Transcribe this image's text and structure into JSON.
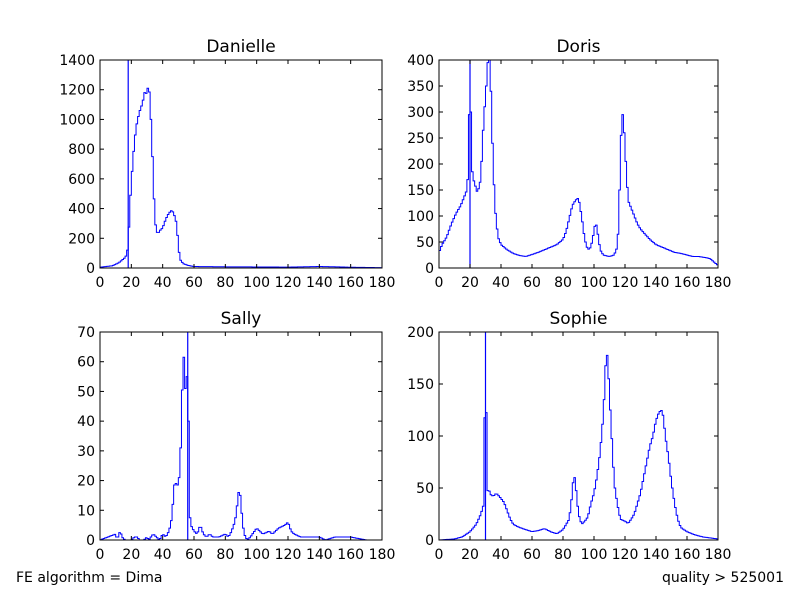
{
  "footer": {
    "left": "FE algorithm = Dima",
    "right": "quality > 525001"
  },
  "chart_data": [
    {
      "type": "histogram",
      "title": "Danielle",
      "xlim": [
        0,
        180
      ],
      "ylim": [
        0,
        1400
      ],
      "xticks": [
        0,
        20,
        40,
        60,
        80,
        100,
        120,
        140,
        160,
        180
      ],
      "yticks": [
        0,
        200,
        400,
        600,
        800,
        1000,
        1200,
        1400
      ],
      "color": "#0000ff",
      "bin_width": 1,
      "vline": 18,
      "profile": [
        [
          0,
          5
        ],
        [
          8,
          15
        ],
        [
          12,
          35
        ],
        [
          16,
          70
        ],
        [
          17,
          90
        ],
        [
          18,
          150
        ],
        [
          19,
          400
        ],
        [
          20,
          580
        ],
        [
          21,
          720
        ],
        [
          22,
          850
        ],
        [
          23,
          940
        ],
        [
          24,
          1000
        ],
        [
          25,
          1040
        ],
        [
          26,
          1080
        ],
        [
          27,
          1100
        ],
        [
          28,
          1160
        ],
        [
          29,
          1200
        ],
        [
          30,
          1150
        ],
        [
          31,
          1270
        ],
        [
          32,
          1100
        ],
        [
          33,
          900
        ],
        [
          34,
          600
        ],
        [
          35,
          330
        ],
        [
          36,
          250
        ],
        [
          37,
          230
        ],
        [
          38,
          250
        ],
        [
          40,
          270
        ],
        [
          42,
          330
        ],
        [
          44,
          370
        ],
        [
          46,
          390
        ],
        [
          48,
          340
        ],
        [
          49,
          290
        ],
        [
          50,
          150
        ],
        [
          51,
          60
        ],
        [
          53,
          30
        ],
        [
          56,
          18
        ],
        [
          60,
          10
        ],
        [
          80,
          8
        ],
        [
          120,
          6
        ],
        [
          140,
          10
        ],
        [
          150,
          8
        ],
        [
          160,
          5
        ],
        [
          175,
          3
        ],
        [
          180,
          2
        ]
      ]
    },
    {
      "type": "histogram",
      "title": "Doris",
      "xlim": [
        0,
        180
      ],
      "ylim": [
        0,
        400
      ],
      "xticks": [
        0,
        20,
        40,
        60,
        80,
        100,
        120,
        140,
        160,
        180
      ],
      "yticks": [
        0,
        50,
        100,
        150,
        200,
        250,
        300,
        350,
        400
      ],
      "color": "#0000ff",
      "bin_width": 1,
      "vline": 20,
      "profile": [
        [
          0,
          30
        ],
        [
          2,
          45
        ],
        [
          5,
          60
        ],
        [
          8,
          85
        ],
        [
          11,
          105
        ],
        [
          14,
          120
        ],
        [
          16,
          135
        ],
        [
          18,
          150
        ],
        [
          19,
          190
        ],
        [
          20,
          400
        ],
        [
          21,
          200
        ],
        [
          22,
          170
        ],
        [
          23,
          165
        ],
        [
          24,
          150
        ],
        [
          25,
          145
        ],
        [
          26,
          160
        ],
        [
          27,
          170
        ],
        [
          28,
          240
        ],
        [
          29,
          290
        ],
        [
          30,
          330
        ],
        [
          31,
          370
        ],
        [
          32,
          420
        ],
        [
          33,
          400
        ],
        [
          34,
          280
        ],
        [
          35,
          200
        ],
        [
          36,
          120
        ],
        [
          38,
          60
        ],
        [
          40,
          45
        ],
        [
          44,
          35
        ],
        [
          48,
          28
        ],
        [
          52,
          24
        ],
        [
          56,
          22
        ],
        [
          60,
          26
        ],
        [
          64,
          30
        ],
        [
          68,
          35
        ],
        [
          72,
          40
        ],
        [
          76,
          45
        ],
        [
          80,
          55
        ],
        [
          82,
          70
        ],
        [
          84,
          95
        ],
        [
          86,
          120
        ],
        [
          88,
          130
        ],
        [
          90,
          135
        ],
        [
          92,
          100
        ],
        [
          94,
          55
        ],
        [
          96,
          35
        ],
        [
          98,
          40
        ],
        [
          100,
          70
        ],
        [
          101,
          90
        ],
        [
          102,
          75
        ],
        [
          104,
          35
        ],
        [
          106,
          25
        ],
        [
          110,
          22
        ],
        [
          113,
          25
        ],
        [
          115,
          40
        ],
        [
          116,
          90
        ],
        [
          117,
          210
        ],
        [
          118,
          300
        ],
        [
          119,
          290
        ],
        [
          120,
          230
        ],
        [
          121,
          180
        ],
        [
          122,
          130
        ],
        [
          124,
          115
        ],
        [
          126,
          100
        ],
        [
          128,
          85
        ],
        [
          130,
          75
        ],
        [
          133,
          65
        ],
        [
          136,
          55
        ],
        [
          140,
          45
        ],
        [
          144,
          40
        ],
        [
          148,
          35
        ],
        [
          152,
          30
        ],
        [
          156,
          28
        ],
        [
          160,
          25
        ],
        [
          164,
          22
        ],
        [
          168,
          22
        ],
        [
          172,
          20
        ],
        [
          175,
          18
        ],
        [
          178,
          10
        ],
        [
          180,
          5
        ]
      ]
    },
    {
      "type": "histogram",
      "title": "Sally",
      "xlim": [
        0,
        180
      ],
      "ylim": [
        0,
        70
      ],
      "xticks": [
        0,
        20,
        40,
        60,
        80,
        100,
        120,
        140,
        160,
        180
      ],
      "yticks": [
        0,
        10,
        20,
        30,
        40,
        50,
        60,
        70
      ],
      "color": "#0000ff",
      "bin_width": 1,
      "vline": 56,
      "profile": [
        [
          0,
          0
        ],
        [
          10,
          2
        ],
        [
          11,
          0
        ],
        [
          12,
          2
        ],
        [
          13,
          3
        ],
        [
          14,
          1
        ],
        [
          16,
          0
        ],
        [
          20,
          0
        ],
        [
          22,
          1
        ],
        [
          24,
          1
        ],
        [
          25,
          0
        ],
        [
          28,
          0
        ],
        [
          30,
          1
        ],
        [
          31,
          0
        ],
        [
          34,
          2
        ],
        [
          36,
          1
        ],
        [
          38,
          0
        ],
        [
          40,
          2
        ],
        [
          42,
          1
        ],
        [
          44,
          3
        ],
        [
          45,
          5
        ],
        [
          46,
          8
        ],
        [
          47,
          16
        ],
        [
          48,
          21
        ],
        [
          49,
          17
        ],
        [
          50,
          20
        ],
        [
          51,
          22
        ],
        [
          52,
          40
        ],
        [
          53,
          61
        ],
        [
          54,
          62
        ],
        [
          55,
          40
        ],
        [
          56,
          70
        ],
        [
          57,
          10
        ],
        [
          58,
          5
        ],
        [
          60,
          3
        ],
        [
          62,
          2
        ],
        [
          64,
          5
        ],
        [
          66,
          2
        ],
        [
          68,
          1
        ],
        [
          70,
          2
        ],
        [
          72,
          1
        ],
        [
          74,
          1
        ],
        [
          76,
          1
        ],
        [
          80,
          2
        ],
        [
          82,
          1
        ],
        [
          84,
          3
        ],
        [
          86,
          6
        ],
        [
          87,
          9
        ],
        [
          88,
          14
        ],
        [
          89,
          18
        ],
        [
          90,
          12
        ],
        [
          91,
          6
        ],
        [
          92,
          2
        ],
        [
          94,
          0
        ],
        [
          96,
          1
        ],
        [
          100,
          4
        ],
        [
          104,
          2
        ],
        [
          108,
          3
        ],
        [
          110,
          2
        ],
        [
          114,
          4
        ],
        [
          118,
          5
        ],
        [
          120,
          6
        ],
        [
          122,
          3
        ],
        [
          124,
          2
        ],
        [
          128,
          1
        ],
        [
          132,
          1
        ],
        [
          140,
          1
        ],
        [
          144,
          0
        ],
        [
          150,
          1
        ],
        [
          160,
          1
        ],
        [
          170,
          0
        ]
      ]
    },
    {
      "type": "histogram",
      "title": "Sophie",
      "xlim": [
        0,
        180
      ],
      "ylim": [
        0,
        200
      ],
      "xticks": [
        0,
        20,
        40,
        60,
        80,
        100,
        120,
        140,
        160,
        180
      ],
      "yticks": [
        0,
        50,
        100,
        150,
        200
      ],
      "color": "#0000ff",
      "bin_width": 1,
      "vline": 30,
      "profile": [
        [
          0,
          0
        ],
        [
          10,
          1
        ],
        [
          15,
          3
        ],
        [
          20,
          8
        ],
        [
          24,
          15
        ],
        [
          27,
          25
        ],
        [
          29,
          35
        ],
        [
          30,
          200
        ],
        [
          31,
          45
        ],
        [
          32,
          50
        ],
        [
          33,
          44
        ],
        [
          35,
          42
        ],
        [
          37,
          45
        ],
        [
          40,
          40
        ],
        [
          42,
          36
        ],
        [
          44,
          28
        ],
        [
          46,
          20
        ],
        [
          48,
          15
        ],
        [
          52,
          12
        ],
        [
          56,
          10
        ],
        [
          60,
          8
        ],
        [
          64,
          9
        ],
        [
          68,
          11
        ],
        [
          72,
          8
        ],
        [
          76,
          6
        ],
        [
          80,
          10
        ],
        [
          84,
          20
        ],
        [
          86,
          45
        ],
        [
          87,
          65
        ],
        [
          88,
          55
        ],
        [
          89,
          40
        ],
        [
          90,
          25
        ],
        [
          92,
          15
        ],
        [
          94,
          18
        ],
        [
          96,
          22
        ],
        [
          98,
          35
        ],
        [
          100,
          45
        ],
        [
          102,
          62
        ],
        [
          104,
          85
        ],
        [
          106,
          120
        ],
        [
          107,
          150
        ],
        [
          108,
          185
        ],
        [
          109,
          170
        ],
        [
          110,
          140
        ],
        [
          111,
          110
        ],
        [
          112,
          85
        ],
        [
          113,
          55
        ],
        [
          115,
          35
        ],
        [
          117,
          20
        ],
        [
          120,
          18
        ],
        [
          122,
          16
        ],
        [
          124,
          20
        ],
        [
          126,
          25
        ],
        [
          128,
          35
        ],
        [
          130,
          45
        ],
        [
          132,
          60
        ],
        [
          134,
          75
        ],
        [
          136,
          90
        ],
        [
          138,
          100
        ],
        [
          140,
          115
        ],
        [
          142,
          123
        ],
        [
          144,
          125
        ],
        [
          145,
          115
        ],
        [
          146,
          100
        ],
        [
          148,
          80
        ],
        [
          150,
          55
        ],
        [
          152,
          35
        ],
        [
          154,
          20
        ],
        [
          156,
          12
        ],
        [
          160,
          8
        ],
        [
          165,
          5
        ],
        [
          170,
          3
        ],
        [
          175,
          2
        ],
        [
          180,
          1
        ]
      ]
    }
  ]
}
